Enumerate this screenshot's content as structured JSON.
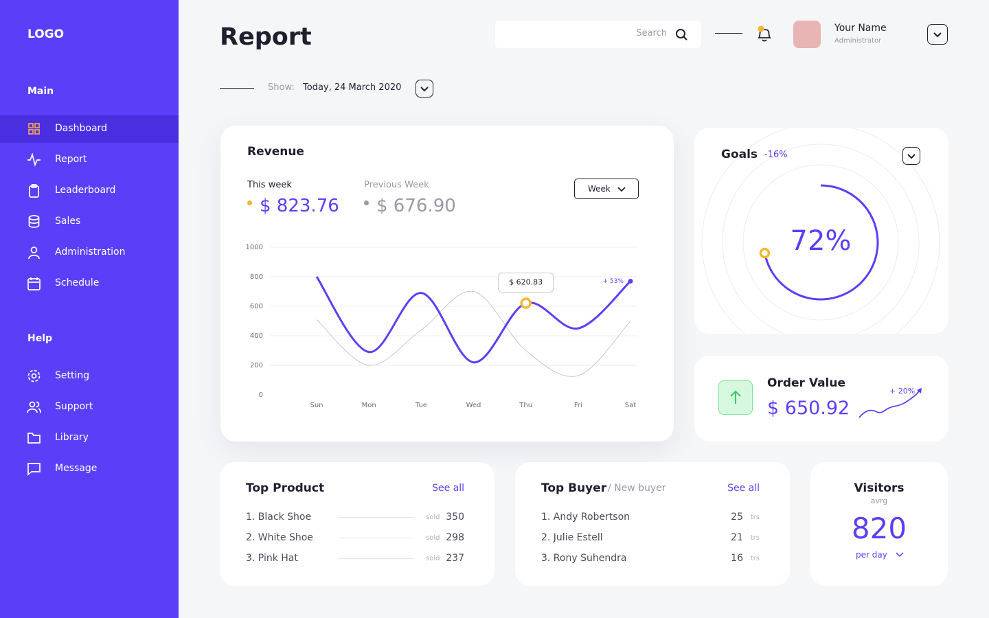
{
  "sidebar": {
    "logo": "LOGO",
    "sections": [
      {
        "title": "Main",
        "items": [
          "Dashboard",
          "Report",
          "Leaderboard",
          "Sales",
          "Administration",
          "Schedule"
        ]
      },
      {
        "title": "Help",
        "items": [
          "Setting",
          "Support",
          "Library",
          "Message"
        ]
      }
    ]
  },
  "header": {
    "title": "Report",
    "search_placeholder": "Search",
    "user_name": "Your Name",
    "user_role": "Administrator",
    "show_label": "Show:",
    "date": "Today, 24 March 2020"
  },
  "revenue": {
    "title": "Revenue",
    "this_week_label": "This week",
    "this_week_value": "$ 823.76",
    "previous_week_label": "Previous Week",
    "previous_week_value": "$ 676.90",
    "period": "Week",
    "chart_data": {
      "type": "line",
      "categories": [
        "Sun",
        "Mon",
        "Tue",
        "Wed",
        "Thu",
        "Fri",
        "Sat"
      ],
      "series": [
        {
          "name": "This week",
          "color": "#5b3ff8",
          "values": [
            800,
            290,
            690,
            220,
            620.83,
            450,
            770
          ],
          "value_labels": [
            null,
            null,
            null,
            null,
            "$ 620.83",
            null,
            null
          ]
        },
        {
          "name": "Previous Week",
          "color": "#c8c8cc",
          "values": [
            510,
            200,
            440,
            700,
            300,
            130,
            500
          ]
        }
      ],
      "annotation": "+ 53%",
      "ylim": [
        0,
        1000
      ],
      "yticks": [
        0,
        200,
        400,
        600,
        800,
        1000
      ],
      "grid": true
    }
  },
  "goals": {
    "title": "Goals",
    "change": "-16%",
    "value": 72,
    "value_label": "72%"
  },
  "order_value": {
    "title": "Order Value",
    "value": "$ 650.92",
    "change": "+ 20%"
  },
  "top_product": {
    "title": "Top Product",
    "link": "See all",
    "items": [
      {
        "name": "1. Black Shoe",
        "unit": "sold",
        "value": "350"
      },
      {
        "name": "2. White Shoe",
        "unit": "sold",
        "value": "298"
      },
      {
        "name": "3. Pink Hat",
        "unit": "sold",
        "value": "237"
      }
    ]
  },
  "top_buyer": {
    "title": "Top Buyer",
    "subtitle": "/ New buyer",
    "link": "See all",
    "items": [
      {
        "name": "1. Andy Robertson",
        "value": "25",
        "unit": "trs"
      },
      {
        "name": "2. Julie Estell",
        "value": "21",
        "unit": "trs"
      },
      {
        "name": "3. Rony Suhendra",
        "value": "16",
        "unit": "trs"
      }
    ]
  },
  "visitors": {
    "title": "Visitors",
    "subtitle": "avrg",
    "value": "820",
    "period": "per day"
  }
}
